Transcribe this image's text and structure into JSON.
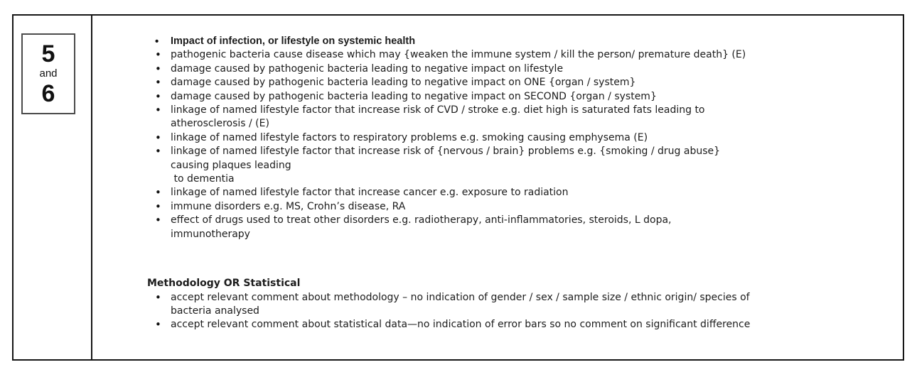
{
  "question_cell": {
    "number_top": "5",
    "connector": "and",
    "number_bottom": "6"
  },
  "answer_cell": {
    "impact_points": [
      "Impact of infection, or lifestyle on systemic health",
      "pathogenic bacteria cause disease which may {weaken the immune system / kill the person/ premature death} (E)",
      "damage caused by pathogenic bacteria leading to negative impact on lifestyle",
      "damage caused by pathogenic bacteria leading to negative impact on ONE {organ / system}",
      "damage caused by pathogenic bacteria leading to negative impact on SECOND {organ / system}",
      "linkage of named lifestyle factor that increase risk of CVD / stroke e.g. diet high is saturated fats leading to\natherosclerosis / (E)",
      "linkage of named lifestyle factors to respiratory problems e.g. smoking causing emphysema (E)",
      "linkage of named lifestyle factor that increase risk of {nervous / brain} problems e.g. {smoking / drug abuse}\ncausing plaques leading\n to dementia",
      "linkage of named lifestyle factor that increase cancer e.g. exposure to radiation",
      "immune disorders e.g. MS, Crohn’s disease, RA",
      "effect of drugs used to treat other disorders e.g. radiotherapy, anti-inflammatories, steroids, L dopa,\nimmunotherapy"
    ],
    "methodology_section": {
      "heading": "Methodology OR Statistical",
      "points": [
        "accept relevant comment about methodology – no indication of gender / sex / sample size / ethnic origin/ species of\nbacteria analysed",
        "accept relevant comment about statistical data—no indication of error bars so no comment on significant difference"
      ]
    }
  },
  "colors": {
    "border": "#161616",
    "inner_box_border": "#4b4b4b",
    "text": "#1c1c1c"
  }
}
